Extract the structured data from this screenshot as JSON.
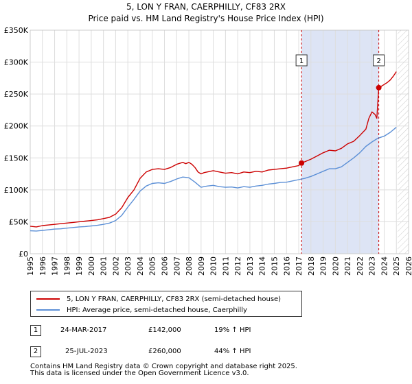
{
  "chart_data": {
    "type": "line",
    "title": "5, LON Y FRAN, CAERPHILLY, CF83 2RX",
    "subtitle": "Price paid vs. HM Land Registry's House Price Index (HPI)",
    "xlabel": "",
    "ylabel": "",
    "xlim": [
      1995.0,
      2026.0
    ],
    "ylim": [
      0,
      350000
    ],
    "x_ticks": [
      1995,
      1996,
      1997,
      1998,
      1999,
      2000,
      2001,
      2002,
      2003,
      2004,
      2005,
      2006,
      2007,
      2008,
      2009,
      2010,
      2011,
      2012,
      2013,
      2014,
      2015,
      2016,
      2017,
      2018,
      2019,
      2020,
      2021,
      2022,
      2023,
      2024,
      2025,
      2026
    ],
    "y_ticks": [
      {
        "value": 0,
        "label": "£0"
      },
      {
        "value": 50000,
        "label": "£50K"
      },
      {
        "value": 100000,
        "label": "£100K"
      },
      {
        "value": 150000,
        "label": "£150K"
      },
      {
        "value": 200000,
        "label": "£200K"
      },
      {
        "value": 250000,
        "label": "£250K"
      },
      {
        "value": 300000,
        "label": "£300K"
      },
      {
        "value": 350000,
        "label": "£350K"
      }
    ],
    "grid": true,
    "shaded_region": {
      "from": 2017.23,
      "to": 2023.56,
      "color": "#dde4f5"
    },
    "future_hatch_from": 2025.1,
    "series": [
      {
        "name": "5, LON Y FRAN, CAERPHILLY, CF83 2RX (semi-detached house)",
        "color": "#cc0000",
        "x": [
          1995.0,
          1995.5,
          1996.0,
          1996.5,
          1997.0,
          1997.5,
          1998.0,
          1998.5,
          1999.0,
          1999.5,
          2000.0,
          2000.5,
          2001.0,
          2001.5,
          2002.0,
          2002.5,
          2003.0,
          2003.5,
          2004.0,
          2004.5,
          2005.0,
          2005.5,
          2006.0,
          2006.5,
          2007.0,
          2007.5,
          2007.75,
          2008.0,
          2008.25,
          2008.5,
          2008.75,
          2009.0,
          2009.25,
          2009.5,
          2010.0,
          2010.5,
          2011.0,
          2011.5,
          2012.0,
          2012.5,
          2013.0,
          2013.5,
          2014.0,
          2014.5,
          2015.0,
          2015.5,
          2016.0,
          2016.5,
          2017.0,
          2017.23,
          2017.5,
          2018.0,
          2018.5,
          2019.0,
          2019.5,
          2020.0,
          2020.5,
          2021.0,
          2021.5,
          2022.0,
          2022.5,
          2022.75,
          2023.0,
          2023.25,
          2023.4,
          2023.56,
          2023.75,
          2024.0,
          2024.25,
          2024.5,
          2024.75,
          2025.0
        ],
        "y": [
          43000,
          42000,
          44000,
          45000,
          46000,
          47000,
          48000,
          49000,
          50000,
          51000,
          52000,
          53000,
          55000,
          57000,
          62000,
          72000,
          88000,
          100000,
          118000,
          128000,
          132000,
          133000,
          132000,
          135000,
          140000,
          143000,
          141000,
          143000,
          140000,
          135000,
          128000,
          125000,
          127000,
          128000,
          130000,
          128000,
          126000,
          127000,
          125000,
          128000,
          127000,
          129000,
          128000,
          131000,
          132000,
          133000,
          134000,
          136000,
          138000,
          142000,
          144000,
          148000,
          153000,
          158000,
          162000,
          161000,
          165000,
          172000,
          176000,
          185000,
          195000,
          212000,
          222000,
          218000,
          212000,
          260000,
          262000,
          265000,
          268000,
          272000,
          278000,
          285000
        ]
      },
      {
        "name": "HPI: Average price, semi-detached house, Caerphilly",
        "color": "#5b8fd6",
        "x": [
          1995.0,
          1995.5,
          1996.0,
          1996.5,
          1997.0,
          1997.5,
          1998.0,
          1998.5,
          1999.0,
          1999.5,
          2000.0,
          2000.5,
          2001.0,
          2001.5,
          2002.0,
          2002.5,
          2003.0,
          2003.5,
          2004.0,
          2004.5,
          2005.0,
          2005.5,
          2006.0,
          2006.5,
          2007.0,
          2007.5,
          2008.0,
          2008.5,
          2009.0,
          2009.5,
          2010.0,
          2010.5,
          2011.0,
          2011.5,
          2012.0,
          2012.5,
          2013.0,
          2013.5,
          2014.0,
          2014.5,
          2015.0,
          2015.5,
          2016.0,
          2016.5,
          2017.0,
          2017.5,
          2018.0,
          2018.5,
          2019.0,
          2019.5,
          2020.0,
          2020.5,
          2021.0,
          2021.5,
          2022.0,
          2022.5,
          2023.0,
          2023.5,
          2024.0,
          2024.5,
          2025.0
        ],
        "y": [
          36000,
          35500,
          36500,
          37500,
          38500,
          39000,
          40000,
          41000,
          42000,
          42500,
          43500,
          44500,
          46000,
          48000,
          52000,
          60000,
          73000,
          85000,
          98000,
          106000,
          110000,
          111000,
          110000,
          113000,
          117000,
          120000,
          119000,
          112000,
          104000,
          106000,
          107000,
          105000,
          104000,
          104500,
          103000,
          105000,
          104000,
          106000,
          107000,
          109000,
          110000,
          111500,
          112000,
          114000,
          116000,
          118000,
          121000,
          125000,
          129000,
          133000,
          133000,
          136000,
          143000,
          150000,
          158000,
          168000,
          175000,
          181000,
          184000,
          190000,
          198000
        ]
      }
    ],
    "markers": [
      {
        "label": "1",
        "x": 2017.23,
        "y": 142000
      },
      {
        "label": "2",
        "x": 2023.56,
        "y": 260000
      }
    ]
  },
  "legend": {
    "price_paid": "5, LON Y FRAN, CAERPHILLY, CF83 2RX (semi-detached house)",
    "hpi": "HPI: Average price, semi-detached house, Caerphilly"
  },
  "transactions": [
    {
      "num": "1",
      "date": "24-MAR-2017",
      "price": "£142,000",
      "change": "19% ↑ HPI"
    },
    {
      "num": "2",
      "date": "25-JUL-2023",
      "price": "£260,000",
      "change": "44% ↑ HPI"
    }
  ],
  "footer": {
    "line1": "Contains HM Land Registry data © Crown copyright and database right 2025.",
    "line2": "This data is licensed under the Open Government Licence v3.0."
  },
  "colors": {
    "price_line": "#cc0000",
    "hpi_line": "#5b8fd6",
    "shade": "#dde4f5",
    "grid": "#dddddd"
  }
}
